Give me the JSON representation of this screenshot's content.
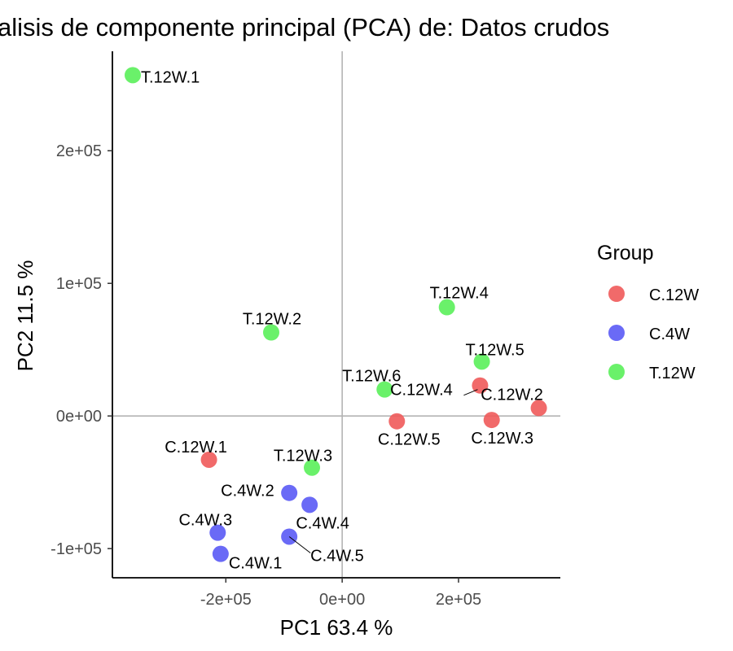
{
  "chart_data": {
    "type": "scatter",
    "title": "alisis de componente principal (PCA) de:  Datos crudos",
    "xlabel": "PC1 63.4 %",
    "ylabel": "PC2 11.5 %",
    "xlim": [
      -395000,
      375000
    ],
    "ylim": [
      -122000,
      275000
    ],
    "x_ticks": [
      -200000,
      0,
      200000
    ],
    "x_tick_labels": [
      "-2e+05",
      "0e+00",
      "2e+05"
    ],
    "y_ticks": [
      -100000,
      0,
      100000,
      200000
    ],
    "y_tick_labels": [
      "-1e+05",
      "0e+00",
      "1e+05",
      "2e+05"
    ],
    "reference_lines": {
      "x": 0,
      "y": 0
    },
    "legend": {
      "title": "Group",
      "position": "right",
      "entries": [
        {
          "label": "C.12W",
          "color": "#f8766d"
        },
        {
          "label": "C.4W",
          "color": "#619cff"
        },
        {
          "label": "T.12W",
          "color": "#00ba38"
        }
      ]
    },
    "colors": {
      "C.12W": "#f05a5a",
      "C.4W": "#5a5af5",
      "T.12W": "#5af05a"
    },
    "points": [
      {
        "label": "T.12W.1",
        "group": "T.12W",
        "x": -360000,
        "y": 257000
      },
      {
        "label": "T.12W.2",
        "group": "T.12W",
        "x": -122000,
        "y": 63000
      },
      {
        "label": "T.12W.3",
        "group": "T.12W",
        "x": -52000,
        "y": -39000
      },
      {
        "label": "T.12W.4",
        "group": "T.12W",
        "x": 180000,
        "y": 82000
      },
      {
        "label": "T.12W.5",
        "group": "T.12W",
        "x": 240000,
        "y": 41000
      },
      {
        "label": "T.12W.6",
        "group": "T.12W",
        "x": 73000,
        "y": 20000
      },
      {
        "label": "C.12W.1",
        "group": "C.12W",
        "x": -229000,
        "y": -33000
      },
      {
        "label": "C.12W.2",
        "group": "C.12W",
        "x": 338000,
        "y": 6000
      },
      {
        "label": "C.12W.3",
        "group": "C.12W",
        "x": 257000,
        "y": -3000
      },
      {
        "label": "C.12W.4",
        "group": "C.12W",
        "x": 237000,
        "y": 23000
      },
      {
        "label": "C.12W.5",
        "group": "C.12W",
        "x": 94000,
        "y": -4000
      },
      {
        "label": "C.4W.1",
        "group": "C.4W",
        "x": -209000,
        "y": -104000
      },
      {
        "label": "C.4W.2",
        "group": "C.4W",
        "x": -91000,
        "y": -58000
      },
      {
        "label": "C.4W.3",
        "group": "C.4W",
        "x": -214000,
        "y": -88000
      },
      {
        "label": "C.4W.4",
        "group": "C.4W",
        "x": -56000,
        "y": -67000
      },
      {
        "label": "C.4W.5",
        "group": "C.4W",
        "x": -91000,
        "y": -91000
      }
    ]
  }
}
